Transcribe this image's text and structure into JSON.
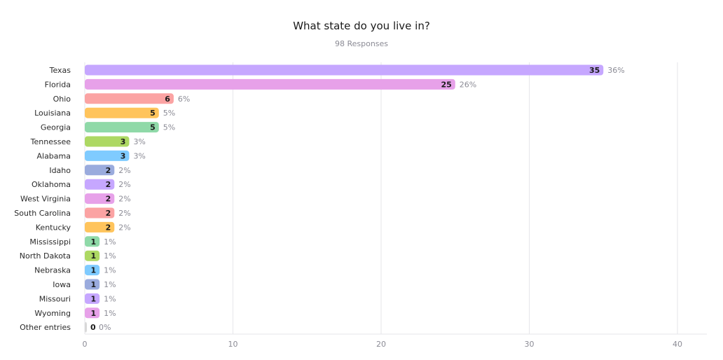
{
  "chart_data": {
    "type": "bar",
    "orientation": "horizontal",
    "title": "What state do you live in?",
    "subtitle": "98 Responses",
    "categories": [
      "Texas",
      "Florida",
      "Ohio",
      "Louisiana",
      "Georgia",
      "Tennessee",
      "Alabama",
      "Idaho",
      "Oklahoma",
      "West Virginia",
      "South Carolina",
      "Kentucky",
      "Mississippi",
      "North Dakota",
      "Nebraska",
      "Iowa",
      "Missouri",
      "Wyoming",
      "Other entries"
    ],
    "values": [
      35,
      25,
      6,
      5,
      5,
      3,
      3,
      2,
      2,
      2,
      2,
      2,
      1,
      1,
      1,
      1,
      1,
      1,
      0
    ],
    "percent_labels": [
      "36%",
      "26%",
      "6%",
      "5%",
      "5%",
      "3%",
      "3%",
      "2%",
      "2%",
      "2%",
      "2%",
      "2%",
      "1%",
      "1%",
      "1%",
      "1%",
      "1%",
      "1%",
      "0%"
    ],
    "colors": [
      "#c6a7ff",
      "#e7a1e9",
      "#fba3a3",
      "#ffc45c",
      "#8fd9a8",
      "#add863",
      "#7fcbff",
      "#9aabdd",
      "#c6a7ff",
      "#e7a1e9",
      "#fba3a3",
      "#ffc45c",
      "#8fd9a8",
      "#add863",
      "#7fcbff",
      "#9aabdd",
      "#c6a7ff",
      "#e7a1e9",
      "#d8d8d8"
    ],
    "xticks": [
      0,
      10,
      20,
      30,
      40
    ],
    "xlim": [
      0,
      42
    ],
    "grid": true
  }
}
